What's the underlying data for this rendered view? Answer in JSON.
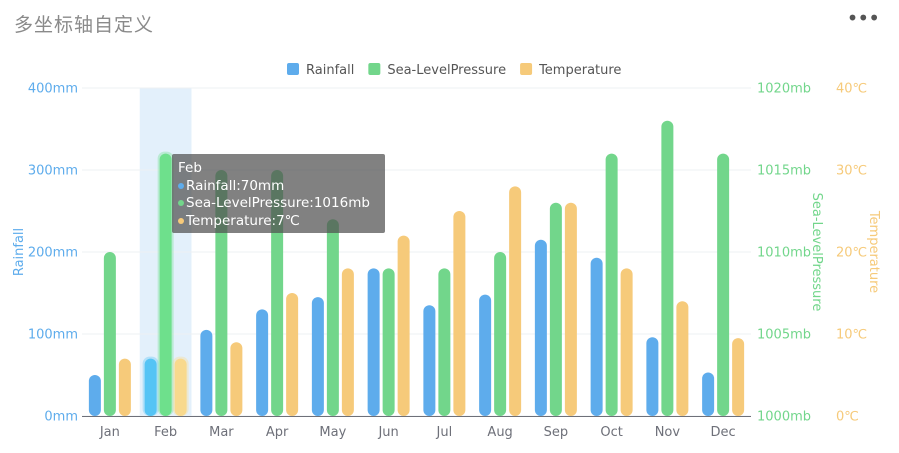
{
  "header": {
    "title": "多坐标轴自定义",
    "more_icon": "more-horizontal-icon",
    "more_label": "•••"
  },
  "colors": {
    "rainfall": "#5eacec",
    "pressure": "#72d68b",
    "temperature": "#f6ca7a",
    "grid": "#eef0f3"
  },
  "chart_data": {
    "type": "bar",
    "categories": [
      "Jan",
      "Feb",
      "Mar",
      "Apr",
      "May",
      "Jun",
      "Jul",
      "Aug",
      "Sep",
      "Oct",
      "Nov",
      "Dec"
    ],
    "series": [
      {
        "name": "Rainfall",
        "axis": "Rainfall",
        "unit": "mm",
        "values": [
          50,
          70,
          105,
          130,
          145,
          180,
          135,
          148,
          215,
          193,
          96,
          53
        ]
      },
      {
        "name": "Sea-LevelPressure",
        "axis": "Sea-LevelPressure",
        "unit": "mb",
        "values": [
          1010,
          1016,
          1015,
          1015,
          1012,
          1009,
          1009,
          1010,
          1013,
          1016,
          1018,
          1016
        ]
      },
      {
        "name": "Temperature",
        "axis": "Temperature",
        "unit": "℃",
        "values": [
          7,
          7,
          9,
          15,
          18,
          22,
          25,
          28,
          26,
          18,
          14,
          9.5
        ]
      }
    ],
    "axes": [
      {
        "name": "Rainfall",
        "min": 0,
        "max": 400,
        "ticks": [
          "0mm",
          "100mm",
          "200mm",
          "300mm",
          "400mm"
        ],
        "color": "#5eacec"
      },
      {
        "name": "Sea-LevelPressure",
        "min": 1000,
        "max": 1020,
        "ticks": [
          "1000mb",
          "1005mb",
          "1010mb",
          "1015mb",
          "1020mb"
        ],
        "color": "#72d68b"
      },
      {
        "name": "Temperature",
        "min": 0,
        "max": 40,
        "ticks": [
          "0℃",
          "10℃",
          "20℃",
          "30℃",
          "40℃"
        ],
        "color": "#f6ca7a"
      }
    ],
    "legend": [
      "Rainfall",
      "Sea-LevelPressure",
      "Temperature"
    ],
    "highlighted_category": "Feb"
  },
  "tooltip": {
    "title": "Feb",
    "rows": [
      "Rainfall:70mm",
      "Sea-LevelPressure:1016mb",
      "Temperature:7℃"
    ]
  }
}
